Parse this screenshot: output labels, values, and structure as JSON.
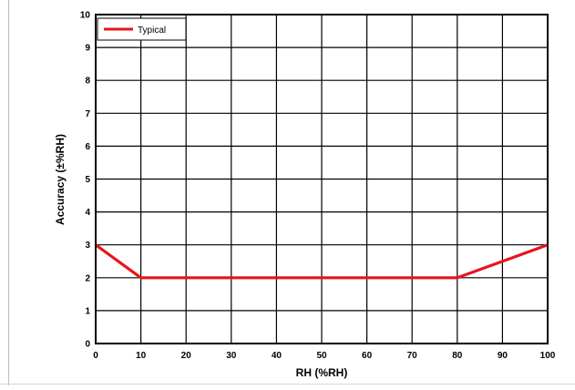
{
  "chart_data": {
    "type": "line",
    "title": "",
    "xlabel": "RH (%RH)",
    "ylabel": "Accuracy (±%RH)",
    "xlim": [
      0,
      100
    ],
    "ylim": [
      0,
      10
    ],
    "x_ticks": [
      0,
      10,
      20,
      30,
      40,
      50,
      60,
      70,
      80,
      90,
      100
    ],
    "y_ticks": [
      0,
      1,
      2,
      3,
      4,
      5,
      6,
      7,
      8,
      9,
      10
    ],
    "grid": true,
    "legend_position": "top-left",
    "series": [
      {
        "name": "Typical",
        "color": "#e8151b",
        "x": [
          0,
          10,
          80,
          100
        ],
        "y": [
          3,
          2,
          2,
          3
        ]
      }
    ]
  }
}
